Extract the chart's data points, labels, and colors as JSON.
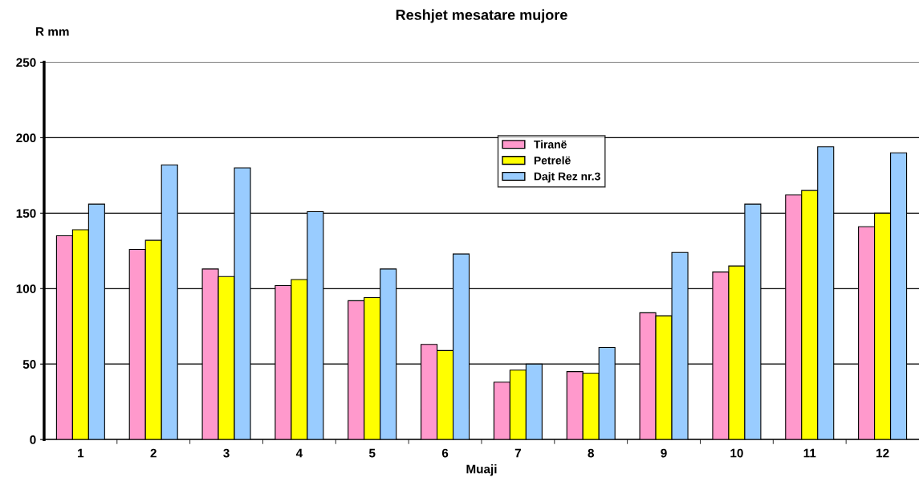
{
  "chart_data": {
    "type": "bar",
    "title": "Reshjet mesatare mujore",
    "xlabel": "Muaji",
    "ylabel": "R mm",
    "categories": [
      "1",
      "2",
      "3",
      "4",
      "5",
      "6",
      "7",
      "8",
      "9",
      "10",
      "11",
      "12"
    ],
    "series": [
      {
        "name": "Tiranë",
        "color": "#ff99cc",
        "values": [
          135,
          126,
          113,
          102,
          92,
          63,
          38,
          45,
          84,
          111,
          162,
          141
        ]
      },
      {
        "name": "Petrelë",
        "color": "#ffff00",
        "values": [
          139,
          132,
          108,
          106,
          94,
          59,
          46,
          44,
          82,
          115,
          165,
          150
        ]
      },
      {
        "name": "Dajt Rez nr.3",
        "color": "#99ccff",
        "values": [
          156,
          182,
          180,
          151,
          113,
          123,
          50,
          61,
          124,
          156,
          194,
          190
        ]
      }
    ],
    "ylim": [
      0,
      250
    ],
    "yticks": [
      0,
      50,
      100,
      150,
      200,
      250
    ],
    "grid": "y",
    "legend": "top"
  }
}
